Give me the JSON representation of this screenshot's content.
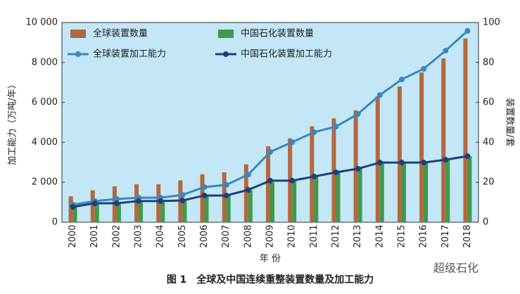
{
  "chart_data": {
    "type": "bar-line",
    "caption": "图 1　全球及中国连续重整装置数量及加工能力",
    "watermark": "超级石化",
    "xlabel": "年 份",
    "ylabel": "加工能力（万吨/年）",
    "y2label": "装置数量/套",
    "categories": [
      "2000",
      "2001",
      "2002",
      "2003",
      "2004",
      "2005",
      "2006",
      "2007",
      "2008",
      "2009",
      "2010",
      "2011",
      "2012",
      "2013",
      "2014",
      "2015",
      "2016",
      "2017",
      "2018"
    ],
    "ylim": [
      0,
      10000
    ],
    "yticks": [
      0,
      {
        "value": 2000,
        "label": "2 000"
      },
      {
        "value": 4000,
        "label": "4 000"
      },
      {
        "value": 6000,
        "label": "6 000"
      },
      {
        "value": 8000,
        "label": "8 000"
      },
      {
        "value": 10000,
        "label": "10 000"
      }
    ],
    "y2lim": [
      0,
      100
    ],
    "y2ticks": [
      0,
      20,
      40,
      60,
      80,
      100
    ],
    "series": [
      {
        "name": "全球装置数量",
        "kind": "bar",
        "axis": "y2",
        "color": "#b5673e",
        "values": [
          13,
          16,
          18,
          19,
          19,
          21,
          24,
          25,
          29,
          38,
          42,
          48,
          52,
          56,
          63,
          68,
          75,
          82,
          92
        ]
      },
      {
        "name": "中国石化装置数量",
        "kind": "bar",
        "axis": "y2",
        "color": "#3f9a4a",
        "values": [
          8,
          9,
          9,
          10,
          10,
          11,
          13,
          14,
          16,
          20,
          21,
          23,
          25,
          27,
          30,
          30,
          30,
          31,
          33
        ]
      },
      {
        "name": "全球装置加工能力",
        "kind": "line",
        "color": "#3a87c0",
        "values": [
          880,
          1060,
          1160,
          1230,
          1230,
          1370,
          1760,
          1870,
          2390,
          3520,
          4010,
          4510,
          4790,
          5420,
          6370,
          7150,
          7680,
          8590,
          9580
        ]
      },
      {
        "name": "中国石化装置加工能力",
        "kind": "line",
        "color": "#1f3f7a",
        "values": [
          770,
          950,
          950,
          1060,
          1060,
          1090,
          1340,
          1340,
          1620,
          2080,
          2080,
          2290,
          2500,
          2680,
          2990,
          2990,
          2990,
          3130,
          3310
        ]
      }
    ]
  }
}
